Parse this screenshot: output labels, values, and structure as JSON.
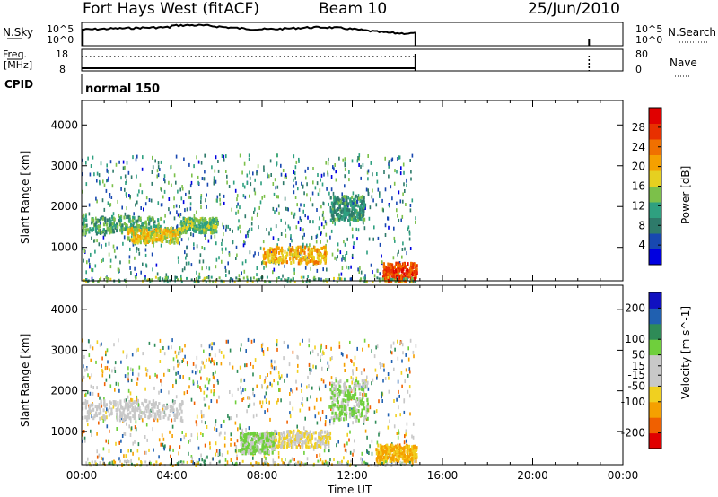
{
  "header": {
    "station": "Fort Hays West (fitACF)",
    "beam": "Beam 10",
    "date": "25/Jun/2010"
  },
  "panels": {
    "nsky": {
      "label": "N.Sky",
      "tick_top": "10^5",
      "tick_bottom": "10^0",
      "right_label": "N.Search"
    },
    "freq": {
      "label_line1": "Freq.",
      "label_line2": "[MHz]",
      "tick_top": "18",
      "tick_bottom": "8",
      "right_tick_top": "80",
      "right_tick_bottom": "0",
      "right_label": "Nave"
    },
    "cpid": {
      "label": "CPID",
      "value": "normal 150"
    }
  },
  "chart_data": [
    {
      "type": "heatmap",
      "title": "",
      "xlabel": "",
      "ylabel": "Slant Range [km]",
      "xlim": [
        "00:00",
        "00:00"
      ],
      "ylim": [
        180,
        4600
      ],
      "yticks": [
        1000,
        2000,
        3000,
        4000
      ],
      "colorbar": {
        "label": "Power [dB]",
        "ticks": [
          4,
          8,
          12,
          16,
          20,
          24,
          28
        ],
        "range": [
          0,
          32
        ],
        "colors": [
          "#0000e0",
          "#1848b0",
          "#2e7a6a",
          "#2fa080",
          "#7cc04a",
          "#e6d020",
          "#f5a000",
          "#f07000",
          "#e83000",
          "#e00000"
        ]
      },
      "features": [
        {
          "start": "00:00",
          "end": "03:30",
          "range": [
            1350,
            1800
          ],
          "value": 12
        },
        {
          "start": "02:00",
          "end": "04:20",
          "range": [
            1150,
            1500
          ],
          "value": 18
        },
        {
          "start": "04:20",
          "end": "06:00",
          "range": [
            1400,
            1750
          ],
          "value": 14
        },
        {
          "start": "08:00",
          "end": "10:50",
          "range": [
            650,
            1050
          ],
          "value": 20
        },
        {
          "start": "13:20",
          "end": "14:50",
          "range": [
            200,
            650
          ],
          "value": 26
        },
        {
          "start": "11:00",
          "end": "12:30",
          "range": [
            1700,
            2300
          ],
          "value": 10
        }
      ]
    },
    {
      "type": "heatmap",
      "title": "",
      "xlabel": "Time UT",
      "ylabel": "Slant Range [km]",
      "xticks": [
        "00:00",
        "04:00",
        "08:00",
        "12:00",
        "16:00",
        "20:00",
        "00:00"
      ],
      "ylim": [
        180,
        4600
      ],
      "yticks": [
        1000,
        2000,
        3000,
        4000
      ],
      "colorbar": {
        "label": "Velocity [m s^-1]",
        "ticks": [
          200,
          100,
          50,
          15,
          -15,
          -50,
          -100,
          -200
        ],
        "range": [
          -250,
          250
        ],
        "colors": [
          "#e00000",
          "#f06000",
          "#f5a000",
          "#f0d020",
          "#c8c8c8",
          "#c8c8c8",
          "#6fcf3c",
          "#2e8b57",
          "#2060b0",
          "#1010c0"
        ]
      },
      "features": [
        {
          "start": "00:00",
          "end": "04:30",
          "range": [
            1300,
            1800
          ],
          "value": 0
        },
        {
          "start": "08:00",
          "end": "11:00",
          "range": [
            650,
            1050
          ],
          "value": -50
        },
        {
          "start": "07:00",
          "end": "08:30",
          "range": [
            500,
            1000
          ],
          "value": 60
        },
        {
          "start": "13:00",
          "end": "14:50",
          "range": [
            300,
            700
          ],
          "value": -100
        },
        {
          "start": "11:00",
          "end": "12:40",
          "range": [
            1300,
            2300
          ],
          "value": 50
        }
      ]
    }
  ]
}
